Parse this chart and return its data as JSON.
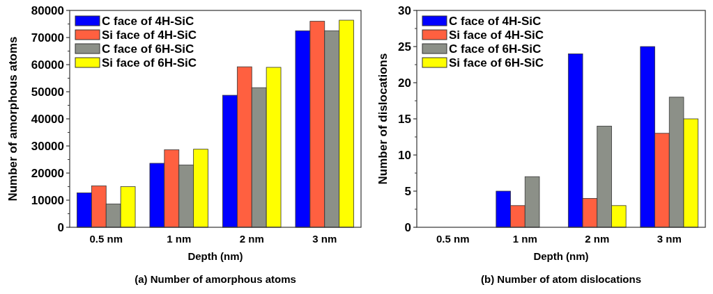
{
  "chart_data": [
    {
      "type": "bar",
      "title": "(a) Number of amorphous atoms",
      "xlabel": "Depth (nm)",
      "ylabel": "Number of amorphous atoms",
      "categories": [
        "0.5 nm",
        "1 nm",
        "2 nm",
        "3 nm"
      ],
      "series": [
        {
          "name": "C face of 4H-SiC",
          "color": "#0000ff",
          "values": [
            12700,
            23600,
            48700,
            72500
          ]
        },
        {
          "name": "Si face of 4H-SiC",
          "color": "#ff6040",
          "values": [
            15300,
            28600,
            59200,
            76000
          ]
        },
        {
          "name": "C face of 6H-SiC",
          "color": "#8c9088",
          "values": [
            8600,
            23000,
            51500,
            72500
          ]
        },
        {
          "name": "Si face of 6H-SiC",
          "color": "#ffff00",
          "values": [
            15000,
            28800,
            59000,
            76400
          ]
        }
      ],
      "ylim": [
        0,
        80000
      ],
      "yticks": [
        0,
        10000,
        20000,
        30000,
        40000,
        50000,
        60000,
        70000,
        80000
      ],
      "grid": false,
      "legend": "top left"
    },
    {
      "type": "bar",
      "title": "(b) Number of atom dislocations",
      "xlabel": "Depth (nm)",
      "ylabel": "Number of dislocations",
      "categories": [
        "0.5 nm",
        "1 nm",
        "2 nm",
        "3 nm"
      ],
      "series": [
        {
          "name": "C face of 4H-SiC",
          "color": "#0000ff",
          "values": [
            0,
            5,
            24,
            25
          ]
        },
        {
          "name": "Si face of 4H-SiC",
          "color": "#ff6040",
          "values": [
            0,
            3,
            4,
            13
          ]
        },
        {
          "name": "C face of 6H-SiC",
          "color": "#8c9088",
          "values": [
            0,
            7,
            14,
            18
          ]
        },
        {
          "name": "Si face of 6H-SiC",
          "color": "#ffff00",
          "values": [
            0,
            0,
            3,
            15
          ]
        }
      ],
      "ylim": [
        0,
        30
      ],
      "yticks": [
        0,
        5,
        10,
        15,
        20,
        25,
        30
      ],
      "grid": false,
      "legend": "top left"
    }
  ]
}
